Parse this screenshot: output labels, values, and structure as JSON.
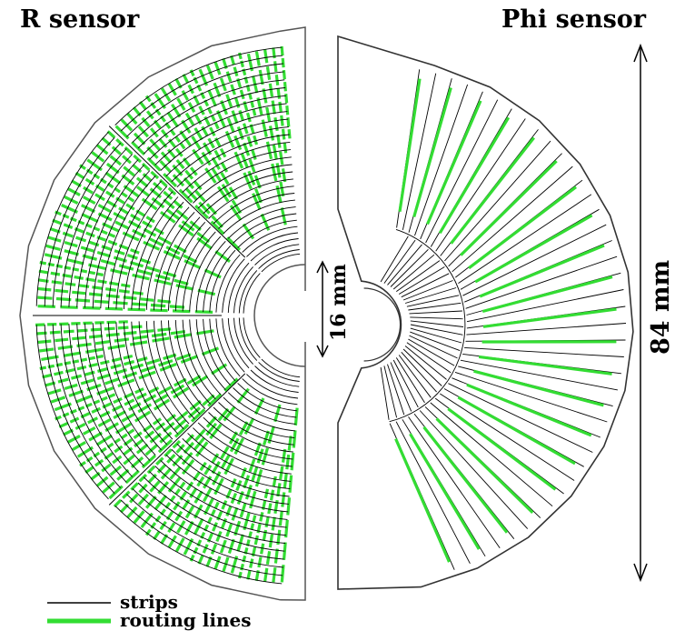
{
  "titles": {
    "r_sensor": "R sensor",
    "phi_sensor": "Phi sensor"
  },
  "dimensions": {
    "inner": "16 mm",
    "outer": "84 mm"
  },
  "legend": {
    "strips": "strips",
    "routing": "routing lines"
  },
  "colors": {
    "strip": "#000000",
    "routing": "#33dd33",
    "outline": "#555555"
  }
}
